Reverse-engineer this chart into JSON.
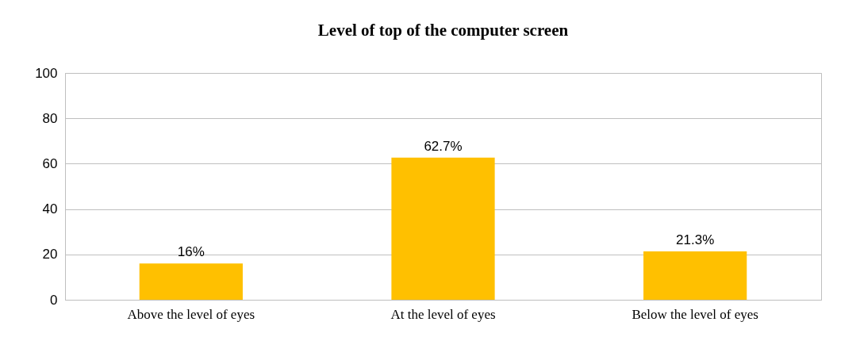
{
  "chart_data": {
    "type": "bar",
    "title": "Level of top of the computer screen",
    "categories": [
      "Above the level of eyes",
      "At the level of eyes",
      "Below the level of eyes"
    ],
    "values": [
      16,
      62.7,
      21.3
    ],
    "value_labels": [
      "16%",
      "62.7%",
      "21.3%"
    ],
    "color": "#ffc000",
    "ylim": [
      0,
      100
    ],
    "yticks": [
      0,
      20,
      40,
      60,
      80,
      100
    ],
    "grid": "y"
  }
}
